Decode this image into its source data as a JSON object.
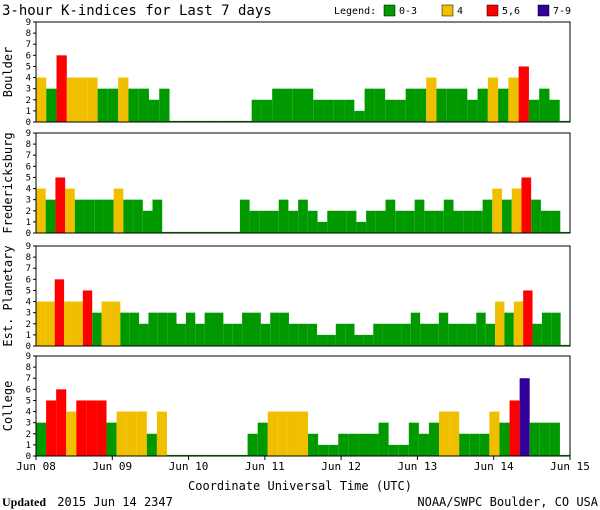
{
  "chart_data": {
    "type": "bar",
    "title": "3-hour K-indices for Last 7 days",
    "legend": {
      "title": "Legend:",
      "entries": [
        {
          "label": "0-3",
          "color": "#009900"
        },
        {
          "label": "4",
          "color": "#f0c000"
        },
        {
          "label": "5,6",
          "color": "#ff0000"
        },
        {
          "label": "7-9",
          "color": "#330099"
        }
      ]
    },
    "xlabel": "Coordinate Universal Time (UTC)",
    "x_ticks": [
      "Jun 08",
      "Jun 09",
      "Jun 10",
      "Jun 11",
      "Jun 12",
      "Jun 13",
      "Jun 14",
      "Jun 15"
    ],
    "ylim": [
      0,
      9
    ],
    "y_ticks": [
      "0",
      "1",
      "2",
      "3",
      "4",
      "5",
      "6",
      "7",
      "8",
      "9"
    ],
    "baseline_value": 0.1,
    "series": [
      {
        "name": "Boulder",
        "values": [
          4,
          3,
          6,
          4,
          4,
          4,
          3,
          3,
          4,
          3,
          3,
          2,
          3,
          0,
          0,
          0,
          0,
          0,
          0,
          0,
          0,
          2,
          2,
          3,
          3,
          3,
          3,
          2,
          2,
          2,
          2,
          1,
          3,
          3,
          2,
          2,
          3,
          3,
          4,
          3,
          3,
          3,
          2,
          3,
          4,
          3,
          4,
          5,
          2,
          3,
          2,
          0
        ]
      },
      {
        "name": "Fredericksburg",
        "values": [
          4,
          3,
          5,
          4,
          3,
          3,
          3,
          3,
          4,
          3,
          3,
          2,
          3,
          0,
          0,
          0,
          0,
          0,
          0,
          0,
          0,
          3,
          2,
          2,
          2,
          3,
          2,
          3,
          2,
          1,
          2,
          2,
          2,
          1,
          2,
          2,
          3,
          2,
          2,
          3,
          2,
          2,
          3,
          2,
          2,
          2,
          3,
          4,
          3,
          4,
          5,
          3,
          2,
          2,
          0
        ]
      },
      {
        "name": "Est. Planetary",
        "values": [
          4,
          4,
          6,
          4,
          4,
          5,
          3,
          4,
          4,
          3,
          3,
          2,
          3,
          3,
          3,
          2,
          3,
          2,
          3,
          3,
          2,
          2,
          3,
          3,
          2,
          3,
          3,
          2,
          2,
          2,
          1,
          1,
          2,
          2,
          1,
          1,
          2,
          2,
          2,
          2,
          3,
          2,
          2,
          3,
          2,
          2,
          2,
          3,
          2,
          4,
          3,
          4,
          5,
          2,
          3,
          3,
          0
        ]
      },
      {
        "name": "College",
        "values": [
          3,
          5,
          6,
          4,
          5,
          5,
          5,
          3,
          4,
          4,
          4,
          2,
          4,
          0,
          0,
          0,
          0,
          0,
          0,
          0,
          0,
          2,
          3,
          4,
          4,
          4,
          4,
          2,
          1,
          1,
          2,
          2,
          2,
          2,
          3,
          1,
          1,
          3,
          2,
          3,
          4,
          4,
          2,
          2,
          2,
          4,
          3,
          5,
          7,
          3,
          3,
          3,
          0
        ]
      }
    ],
    "bar_colors_by_value": {
      "0-3": "#009900",
      "4": "#f0c000",
      "5-6": "#ff0000",
      "7-9": "#330099"
    }
  },
  "footer": {
    "updated_label": "Updated",
    "updated_value": "2015 Jun 14 2347",
    "credit": "NOAA/SWPC Boulder, CO USA"
  }
}
